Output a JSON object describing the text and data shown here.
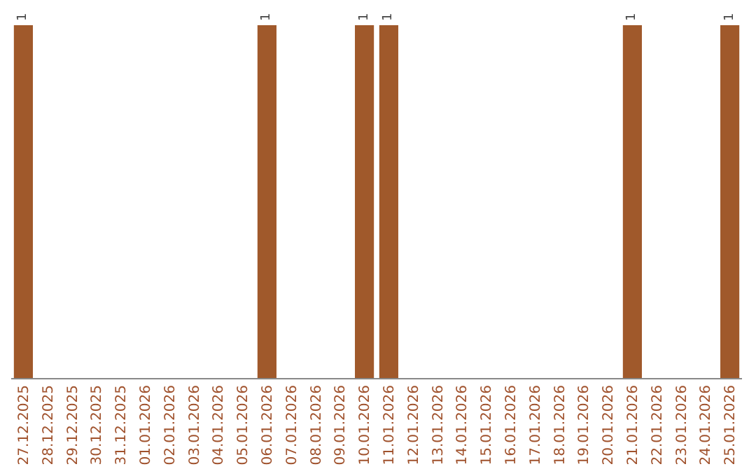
{
  "chart_data": {
    "type": "bar",
    "categories": [
      "27.12.2025",
      "28.12.2025",
      "29.12.2025",
      "30.12.2025",
      "31.12.2025",
      "01.01.2026",
      "02.01.2026",
      "03.01.2026",
      "04.01.2026",
      "05.01.2026",
      "06.01.2026",
      "07.01.2026",
      "08.01.2026",
      "09.01.2026",
      "10.01.2026",
      "11.01.2026",
      "12.01.2026",
      "13.01.2026",
      "14.01.2026",
      "15.01.2026",
      "16.01.2026",
      "17.01.2026",
      "18.01.2026",
      "19.01.2026",
      "20.01.2026",
      "21.01.2026",
      "22.01.2026",
      "23.01.2026",
      "24.01.2026",
      "25.01.2026"
    ],
    "values": [
      1,
      0,
      0,
      0,
      0,
      0,
      0,
      0,
      0,
      0,
      1,
      0,
      0,
      0,
      1,
      1,
      0,
      0,
      0,
      0,
      0,
      0,
      0,
      0,
      0,
      1,
      0,
      0,
      0,
      1
    ],
    "value_labels": [
      "1",
      null,
      null,
      null,
      null,
      null,
      null,
      null,
      null,
      null,
      "1",
      null,
      null,
      null,
      "1",
      "1",
      null,
      null,
      null,
      null,
      null,
      null,
      null,
      null,
      null,
      "1",
      null,
      null,
      null,
      "1"
    ],
    "color": "#a0592b"
  }
}
